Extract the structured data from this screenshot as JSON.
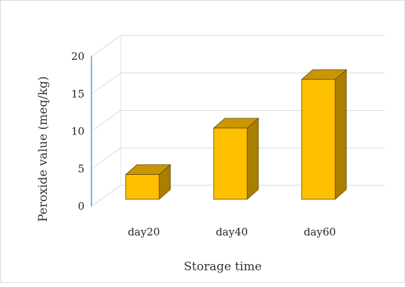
{
  "chart_data": {
    "type": "bar",
    "categories": [
      "day20",
      "day40",
      "day60"
    ],
    "values": [
      3.3,
      9.5,
      16.0
    ],
    "xlabel": "Storage time",
    "ylabel": "Peroxide value (meq/kg)",
    "ylim": [
      0,
      20
    ],
    "yticks": [
      "0",
      "5",
      "10",
      "15",
      "20"
    ],
    "grid": true,
    "legend": "none",
    "bar_color": "#FFC000",
    "bar_side_color": "#A97F00",
    "bar_top_color": "#C99600",
    "axis_color": "#7ab3e0"
  }
}
